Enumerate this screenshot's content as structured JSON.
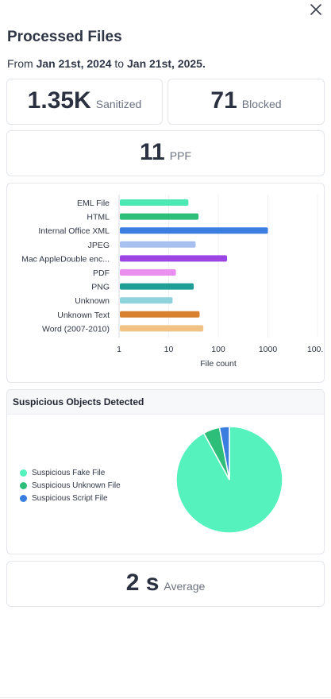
{
  "header": {
    "title": "Processed Files",
    "date_prefix": "From",
    "date_from": "Jan 21st, 2024",
    "date_connector": "to",
    "date_to": "Jan 21st, 2025."
  },
  "stats": {
    "sanitized": {
      "value": "1.35K",
      "label": "Sanitized"
    },
    "blocked": {
      "value": "71",
      "label": "Blocked"
    },
    "ppf": {
      "value": "11",
      "label": "PPF"
    },
    "average": {
      "value": "2 s",
      "label": "Average"
    }
  },
  "chart_data": [
    {
      "type": "bar",
      "orientation": "horizontal",
      "categories": [
        "EML File",
        "HTML",
        "Internal Office XML",
        "JPEG",
        "Mac AppleDouble enc...",
        "PDF",
        "PNG",
        "Unknown",
        "Unknown Text",
        "Word (2007-2010)"
      ],
      "values": [
        25,
        40,
        1000,
        35,
        150,
        14,
        32,
        12,
        42,
        50
      ],
      "colors": [
        "#4de9b4",
        "#2dbe7a",
        "#3a7fe0",
        "#a7c0f0",
        "#9b45e3",
        "#ea8ef0",
        "#1f9e98",
        "#8fd3dc",
        "#d9812e",
        "#f0c384"
      ],
      "xlabel": "File count",
      "xscale": "log",
      "xlim": [
        1,
        10000
      ],
      "tick_labels": [
        "1",
        "10",
        "100",
        "1000",
        "100..."
      ],
      "grid": true
    },
    {
      "type": "pie",
      "title": "Suspicious Objects Detected",
      "labels": [
        "Suspicious Fake File",
        "Suspicious Unknown File",
        "Suspicious Script File"
      ],
      "values": [
        92,
        5,
        3
      ],
      "colors": [
        "#56f2be",
        "#2dbe7a",
        "#3a7fe0"
      ],
      "legend": "left"
    }
  ],
  "icons": {
    "close": "close-icon"
  }
}
